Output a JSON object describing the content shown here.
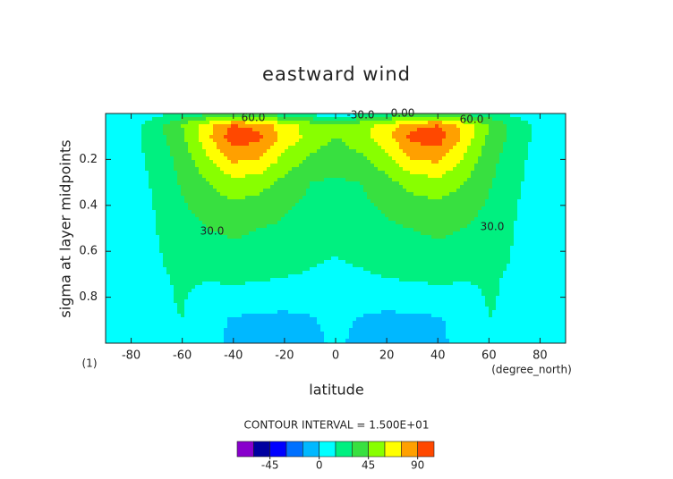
{
  "chart_data": {
    "type": "contour",
    "title": "eastward wind",
    "xlabel": "latitude",
    "ylabel": "sigma at layer midpoints",
    "x_unit": "(degree_north)",
    "panel_label": "(1)",
    "contour_interval_text": "CONTOUR INTERVAL = 1.500E+01",
    "x": [
      -90,
      -80,
      -70,
      -60,
      -50,
      -40,
      -30,
      -20,
      -10,
      0,
      10,
      20,
      30,
      40,
      50,
      60,
      70,
      80,
      90
    ],
    "y": [
      0,
      0.05,
      0.1,
      0.2,
      0.3,
      0.4,
      0.5,
      0.6,
      0.7,
      0.8,
      0.9,
      1.0
    ],
    "z": [
      [
        2,
        5,
        10,
        20,
        25,
        30,
        30,
        20,
        10,
        0,
        10,
        20,
        30,
        30,
        25,
        20,
        10,
        5,
        2
      ],
      [
        5,
        10,
        25,
        45,
        70,
        90,
        85,
        65,
        55,
        50,
        55,
        65,
        85,
        90,
        70,
        45,
        25,
        10,
        5
      ],
      [
        5,
        10,
        24,
        42,
        72,
        100,
        95,
        70,
        55,
        45,
        55,
        70,
        95,
        100,
        72,
        42,
        24,
        10,
        5
      ],
      [
        5,
        9,
        20,
        36,
        58,
        78,
        75,
        55,
        42,
        35,
        42,
        55,
        75,
        78,
        58,
        36,
        20,
        9,
        5
      ],
      [
        5,
        8,
        18,
        32,
        45,
        55,
        52,
        40,
        30,
        28,
        30,
        40,
        52,
        55,
        45,
        32,
        18,
        8,
        5
      ],
      [
        5,
        8,
        16,
        28,
        37,
        42,
        38,
        32,
        27,
        24,
        27,
        32,
        38,
        42,
        37,
        28,
        16,
        8,
        5
      ],
      [
        5,
        8,
        15,
        24,
        30,
        33,
        30,
        28,
        22,
        20,
        22,
        28,
        30,
        33,
        30,
        24,
        15,
        8,
        5
      ],
      [
        5,
        8,
        14,
        20,
        24,
        27,
        25,
        22,
        18,
        16,
        18,
        22,
        25,
        27,
        24,
        20,
        14,
        8,
        5
      ],
      [
        5,
        8,
        14,
        16,
        17,
        19,
        18,
        16,
        14,
        12,
        14,
        16,
        18,
        19,
        17,
        16,
        14,
        8,
        5
      ],
      [
        5,
        8,
        13,
        16,
        11,
        10,
        9,
        8,
        8,
        8,
        8,
        8,
        9,
        10,
        11,
        16,
        13,
        8,
        5
      ],
      [
        5,
        8,
        13,
        15,
        6,
        -2,
        -4,
        -5,
        -2,
        5,
        -2,
        -5,
        -4,
        -2,
        6,
        15,
        13,
        8,
        5
      ],
      [
        5,
        8,
        12,
        10,
        4,
        -3,
        -6,
        -8,
        -5,
        3,
        -5,
        -8,
        -6,
        -3,
        4,
        10,
        12,
        8,
        5
      ]
    ],
    "xlim": [
      -90,
      90
    ],
    "ylim": [
      1,
      0
    ],
    "xticks": [
      -80,
      -60,
      -40,
      -20,
      0,
      20,
      40,
      60,
      80
    ],
    "yticks": [
      0.2,
      0.4,
      0.6,
      0.8
    ],
    "levels": [
      -75,
      -60,
      -45,
      -30,
      -15,
      0,
      15,
      30,
      45,
      60,
      75,
      90,
      105
    ],
    "colors": [
      "#8800cc",
      "#0000a0",
      "#0000ff",
      "#0070ff",
      "#00b8ff",
      "#00ffff",
      "#00f080",
      "#38e040",
      "#88ff00",
      "#ffff00",
      "#ffa000",
      "#ff4800",
      "#ff1818"
    ],
    "colorbar_ticks": [
      -45,
      0,
      45,
      90
    ],
    "contour_labels": [
      "60.0",
      "-30.0",
      "0.00",
      "60.0",
      "30.0",
      "30.0"
    ]
  }
}
